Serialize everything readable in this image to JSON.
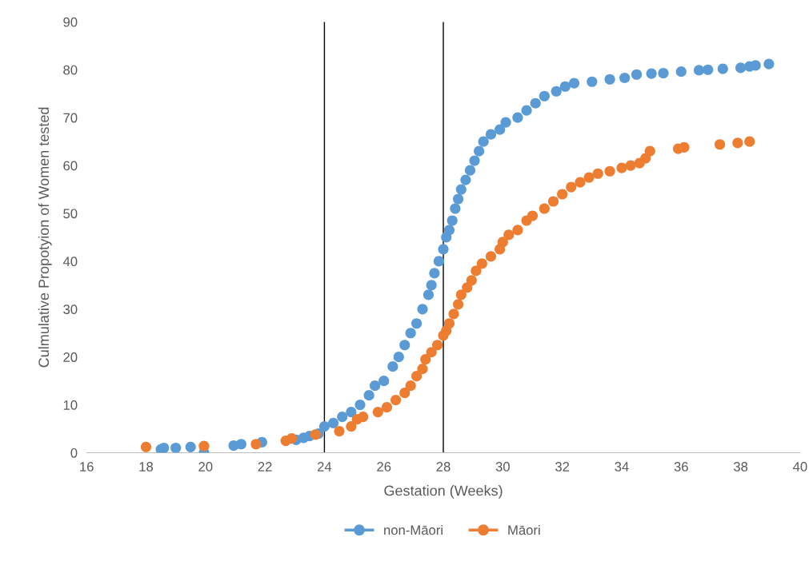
{
  "chart_data": {
    "type": "scatter",
    "xlabel": "Gestation (Weeks)",
    "ylabel": "Culmulative Propotyion of Women tested",
    "xlim": [
      16,
      40
    ],
    "xticks": [
      16,
      18,
      20,
      22,
      24,
      26,
      28,
      30,
      32,
      34,
      36,
      38,
      40
    ],
    "ylim": [
      0,
      90
    ],
    "yticks": [
      0,
      10,
      20,
      30,
      40,
      50,
      60,
      70,
      80,
      90
    ],
    "grid": false,
    "legend": "bottom",
    "marker": "circle",
    "ref_lines": [
      {
        "axis": "x",
        "value": 24,
        "color": "#000000"
      },
      {
        "axis": "x",
        "value": 28,
        "color": "#000000"
      }
    ],
    "series": [
      {
        "name": "non-Māori",
        "color": "#5b9bd5",
        "x": [
          18.5,
          18.6,
          19,
          19.5,
          19.95,
          20.95,
          21.2,
          21.9,
          23.05,
          23.3,
          23.5,
          23.8,
          24,
          24.3,
          24.6,
          24.9,
          25.2,
          25.5,
          25.7,
          26,
          26.3,
          26.5,
          26.7,
          26.9,
          27.1,
          27.3,
          27.5,
          27.6,
          27.7,
          27.85,
          28,
          28.1,
          28.2,
          28.3,
          28.4,
          28.5,
          28.6,
          28.75,
          28.9,
          29.05,
          29.2,
          29.35,
          29.6,
          29.9,
          30.1,
          30.5,
          30.8,
          31.1,
          31.4,
          31.8,
          32.1,
          32.4,
          33,
          33.6,
          34.1,
          34.5,
          35,
          35.4,
          36,
          36.6,
          36.9,
          37.4,
          38,
          38.3,
          38.5,
          38.95
        ],
        "values": [
          0.7,
          1,
          1,
          1.2,
          0,
          1.5,
          1.8,
          2.2,
          2.7,
          3.1,
          3.5,
          4,
          5.5,
          6.2,
          7.5,
          8.5,
          10,
          12,
          14,
          15,
          18,
          20,
          22.5,
          25,
          27,
          30,
          33,
          35,
          37.5,
          40,
          42.5,
          45,
          46.5,
          48.5,
          51,
          53,
          55,
          57,
          59,
          61,
          63,
          65,
          66.5,
          67.5,
          69,
          70,
          71.5,
          73,
          74.5,
          75.5,
          76.5,
          77.2,
          77.5,
          78,
          78.3,
          79,
          79.2,
          79.3,
          79.6,
          79.9,
          80,
          80.2,
          80.4,
          80.7,
          80.9,
          81.2
        ]
      },
      {
        "name": "Māori",
        "color": "#ed7d31",
        "x": [
          18,
          19.95,
          21.7,
          22.7,
          22.9,
          23.7,
          24.5,
          24.9,
          25.1,
          25.3,
          25.8,
          26.1,
          26.4,
          26.7,
          26.9,
          27.1,
          27.3,
          27.4,
          27.6,
          27.8,
          28,
          28.1,
          28.2,
          28.35,
          28.5,
          28.6,
          28.8,
          28.95,
          29.1,
          29.3,
          29.6,
          29.9,
          30,
          30.2,
          30.5,
          30.8,
          31,
          31.4,
          31.7,
          32,
          32.3,
          32.6,
          32.9,
          33.2,
          33.6,
          34,
          34.3,
          34.6,
          34.8,
          34.95,
          35.9,
          36.1,
          37.3,
          37.9,
          38.3
        ],
        "values": [
          1.2,
          1.4,
          1.8,
          2.5,
          3,
          3.8,
          4.5,
          5.5,
          7,
          7.5,
          8.5,
          9.5,
          11,
          12.5,
          14,
          16,
          17.5,
          19.5,
          21,
          22.5,
          24.5,
          25.5,
          27,
          29,
          31,
          33,
          34.5,
          36,
          38,
          39.5,
          41,
          42.5,
          44,
          45.5,
          46.5,
          48.5,
          49.5,
          51,
          52.5,
          54,
          55.5,
          56.5,
          57.5,
          58.3,
          58.8,
          59.5,
          60,
          60.5,
          61.5,
          63,
          63.5,
          63.8,
          64.4,
          64.7,
          65
        ]
      }
    ]
  }
}
